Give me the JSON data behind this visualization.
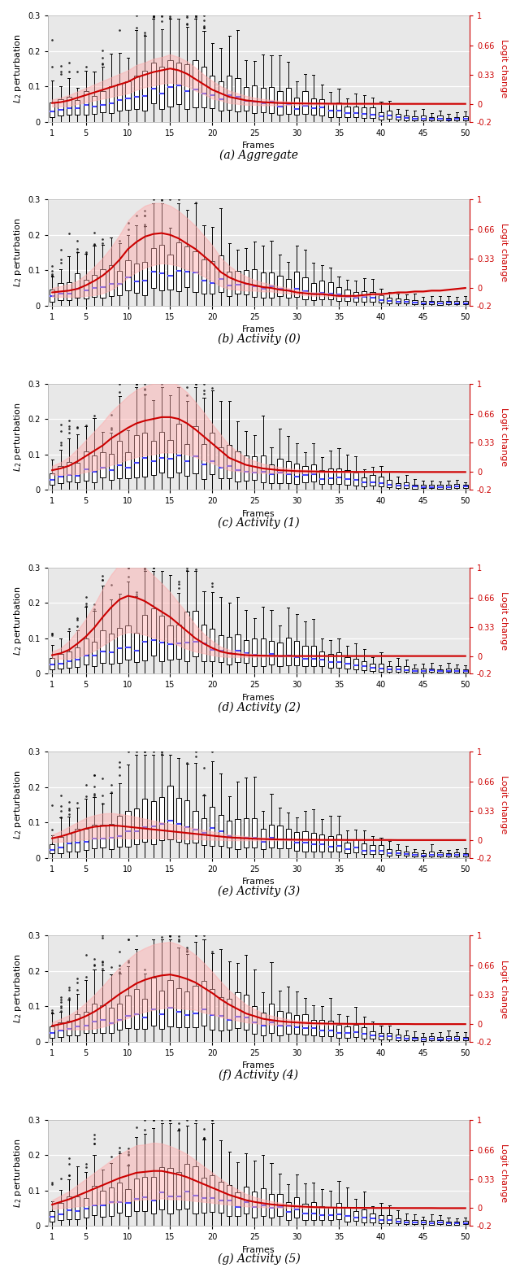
{
  "n_frames": 50,
  "subplot_titles": [
    "(a) Aggregate",
    "(b) Activity (0)",
    "(c) Activity (1)",
    "(d) Activity (2)",
    "(e) Activity (3)",
    "(f) Activity (4)",
    "(g) Activity (5)"
  ],
  "ylim_left": [
    0,
    0.3
  ],
  "ylim_right": [
    -0.2,
    1.0
  ],
  "yticks_left": [
    0,
    0.1,
    0.2,
    0.3
  ],
  "yticks_right_vals": [
    -0.2,
    0,
    0.33,
    0.66,
    1.0
  ],
  "yticks_right_labels": [
    "-0.2",
    "0",
    "0.33",
    "0.66",
    "1"
  ],
  "xticks": [
    1,
    5,
    10,
    15,
    20,
    25,
    30,
    35,
    40,
    45,
    50
  ],
  "xlabel": "Frames",
  "ylabel_left": "$L_2$ perturbation",
  "ylabel_right": "Logit change",
  "background_color": "#e8e8e8",
  "box_facecolor": "white",
  "box_edgecolor": "black",
  "median_color": "#4444ff",
  "whisker_color": "black",
  "flier_color": "black",
  "red_line_color": "#cc0000",
  "red_fill_color": "#ffaaaa",
  "red_fill_alpha": 0.45,
  "box_width": 0.6,
  "red_mean_agg": [
    0.01,
    0.02,
    0.04,
    0.07,
    0.1,
    0.13,
    0.16,
    0.19,
    0.22,
    0.25,
    0.3,
    0.33,
    0.36,
    0.38,
    0.4,
    0.38,
    0.34,
    0.28,
    0.22,
    0.16,
    0.12,
    0.08,
    0.06,
    0.04,
    0.03,
    0.02,
    0.015,
    0.01,
    0.008,
    0.006,
    0.005,
    0.004,
    0.004,
    0.003,
    0.003,
    0.002,
    0.002,
    0.002,
    0.002,
    0.002,
    0.001,
    0.001,
    0.001,
    0.001,
    0.001,
    0.001,
    0.001,
    0.001,
    0.001,
    0.001
  ],
  "red_std_agg": [
    0.04,
    0.05,
    0.06,
    0.07,
    0.08,
    0.09,
    0.1,
    0.11,
    0.12,
    0.13,
    0.14,
    0.14,
    0.15,
    0.15,
    0.16,
    0.15,
    0.14,
    0.13,
    0.11,
    0.1,
    0.08,
    0.07,
    0.06,
    0.05,
    0.04,
    0.035,
    0.03,
    0.025,
    0.02,
    0.018,
    0.015,
    0.013,
    0.012,
    0.01,
    0.01,
    0.008,
    0.008,
    0.007,
    0.007,
    0.006,
    0.006,
    0.005,
    0.005,
    0.005,
    0.004,
    0.004,
    0.004,
    0.003,
    0.003,
    0.003
  ],
  "red_mean_act0": [
    -0.05,
    -0.04,
    -0.03,
    -0.01,
    0.03,
    0.08,
    0.14,
    0.22,
    0.32,
    0.44,
    0.52,
    0.58,
    0.61,
    0.62,
    0.6,
    0.56,
    0.5,
    0.44,
    0.36,
    0.28,
    0.18,
    0.12,
    0.08,
    0.05,
    0.03,
    0.01,
    0.0,
    -0.02,
    -0.03,
    -0.05,
    -0.06,
    -0.07,
    -0.07,
    -0.08,
    -0.09,
    -0.09,
    -0.09,
    -0.08,
    -0.07,
    -0.07,
    -0.06,
    -0.05,
    -0.05,
    -0.04,
    -0.04,
    -0.03,
    -0.03,
    -0.02,
    -0.01,
    0.0
  ],
  "red_std_act0": [
    0.05,
    0.06,
    0.07,
    0.09,
    0.12,
    0.16,
    0.2,
    0.24,
    0.28,
    0.32,
    0.34,
    0.35,
    0.35,
    0.34,
    0.33,
    0.31,
    0.29,
    0.26,
    0.23,
    0.2,
    0.16,
    0.13,
    0.1,
    0.08,
    0.06,
    0.05,
    0.04,
    0.035,
    0.03,
    0.025,
    0.022,
    0.02,
    0.018,
    0.016,
    0.015,
    0.013,
    0.013,
    0.012,
    0.011,
    0.01,
    0.01,
    0.009,
    0.009,
    0.008,
    0.008,
    0.007,
    0.007,
    0.006,
    0.006,
    0.005
  ],
  "red_mean_act1": [
    0.02,
    0.04,
    0.07,
    0.12,
    0.18,
    0.24,
    0.3,
    0.38,
    0.44,
    0.5,
    0.55,
    0.58,
    0.6,
    0.62,
    0.62,
    0.6,
    0.55,
    0.48,
    0.4,
    0.32,
    0.24,
    0.16,
    0.12,
    0.08,
    0.06,
    0.04,
    0.03,
    0.02,
    0.015,
    0.01,
    0.008,
    0.006,
    0.004,
    0.003,
    0.002,
    0.002,
    0.001,
    0.001,
    0.001,
    0.001,
    0.001,
    0.001,
    0.0,
    0.0,
    0.0,
    0.0,
    0.0,
    0.0,
    0.0,
    0.0
  ],
  "red_std_act1": [
    0.05,
    0.07,
    0.1,
    0.14,
    0.18,
    0.22,
    0.26,
    0.3,
    0.33,
    0.36,
    0.38,
    0.39,
    0.4,
    0.4,
    0.4,
    0.38,
    0.35,
    0.31,
    0.27,
    0.22,
    0.18,
    0.14,
    0.11,
    0.08,
    0.065,
    0.052,
    0.042,
    0.034,
    0.027,
    0.022,
    0.018,
    0.015,
    0.012,
    0.01,
    0.009,
    0.008,
    0.007,
    0.006,
    0.006,
    0.005,
    0.005,
    0.004,
    0.004,
    0.004,
    0.003,
    0.003,
    0.003,
    0.002,
    0.002,
    0.002
  ],
  "red_mean_act2": [
    0.01,
    0.03,
    0.07,
    0.14,
    0.22,
    0.32,
    0.44,
    0.55,
    0.64,
    0.68,
    0.66,
    0.62,
    0.56,
    0.5,
    0.44,
    0.36,
    0.28,
    0.2,
    0.14,
    0.09,
    0.05,
    0.03,
    0.02,
    0.01,
    0.006,
    0.004,
    0.002,
    0.001,
    0.001,
    0.0,
    0.0,
    0.0,
    0.0,
    0.0,
    0.0,
    0.0,
    0.0,
    0.0,
    0.0,
    0.0,
    0.0,
    0.0,
    0.0,
    0.0,
    0.0,
    0.0,
    0.0,
    0.0,
    0.0,
    0.0
  ],
  "red_std_act2": [
    0.04,
    0.06,
    0.1,
    0.15,
    0.2,
    0.26,
    0.32,
    0.37,
    0.4,
    0.41,
    0.4,
    0.38,
    0.35,
    0.32,
    0.28,
    0.24,
    0.2,
    0.15,
    0.11,
    0.08,
    0.055,
    0.04,
    0.03,
    0.02,
    0.015,
    0.012,
    0.009,
    0.007,
    0.006,
    0.005,
    0.004,
    0.003,
    0.003,
    0.002,
    0.002,
    0.002,
    0.001,
    0.001,
    0.001,
    0.001,
    0.001,
    0.001,
    0.001,
    0.001,
    0.001,
    0.001,
    0.001,
    0.001,
    0.001,
    0.001
  ],
  "red_mean_act3": [
    0.02,
    0.04,
    0.07,
    0.1,
    0.13,
    0.15,
    0.16,
    0.165,
    0.16,
    0.15,
    0.14,
    0.13,
    0.12,
    0.11,
    0.1,
    0.09,
    0.08,
    0.07,
    0.06,
    0.05,
    0.04,
    0.03,
    0.025,
    0.02,
    0.015,
    0.012,
    0.009,
    0.007,
    0.005,
    0.004,
    0.003,
    0.003,
    0.002,
    0.002,
    0.002,
    0.001,
    0.001,
    0.001,
    0.001,
    0.001,
    0.001,
    0.0,
    0.0,
    0.0,
    0.0,
    0.0,
    0.0,
    0.0,
    0.0,
    0.0
  ],
  "red_std_act3": [
    0.04,
    0.06,
    0.08,
    0.1,
    0.12,
    0.13,
    0.14,
    0.14,
    0.135,
    0.13,
    0.12,
    0.11,
    0.1,
    0.09,
    0.085,
    0.075,
    0.068,
    0.06,
    0.053,
    0.046,
    0.038,
    0.032,
    0.027,
    0.022,
    0.018,
    0.015,
    0.012,
    0.01,
    0.008,
    0.007,
    0.006,
    0.005,
    0.004,
    0.004,
    0.003,
    0.003,
    0.002,
    0.002,
    0.002,
    0.002,
    0.001,
    0.001,
    0.001,
    0.001,
    0.001,
    0.001,
    0.001,
    0.001,
    0.001,
    0.001
  ],
  "red_mean_act4": [
    -0.02,
    0.0,
    0.02,
    0.05,
    0.09,
    0.14,
    0.2,
    0.27,
    0.34,
    0.4,
    0.46,
    0.5,
    0.53,
    0.55,
    0.56,
    0.54,
    0.51,
    0.47,
    0.41,
    0.35,
    0.28,
    0.22,
    0.17,
    0.12,
    0.09,
    0.06,
    0.045,
    0.033,
    0.024,
    0.018,
    0.013,
    0.009,
    0.007,
    0.005,
    0.004,
    0.003,
    0.002,
    0.002,
    0.001,
    0.001,
    0.001,
    0.001,
    0.001,
    0.0,
    0.0,
    0.0,
    0.0,
    0.0,
    0.0,
    0.0
  ],
  "red_std_act4": [
    0.04,
    0.06,
    0.08,
    0.11,
    0.15,
    0.19,
    0.23,
    0.27,
    0.3,
    0.33,
    0.35,
    0.36,
    0.37,
    0.37,
    0.37,
    0.36,
    0.34,
    0.31,
    0.28,
    0.24,
    0.2,
    0.16,
    0.13,
    0.1,
    0.08,
    0.06,
    0.05,
    0.04,
    0.03,
    0.024,
    0.019,
    0.015,
    0.012,
    0.01,
    0.008,
    0.007,
    0.005,
    0.005,
    0.004,
    0.004,
    0.003,
    0.003,
    0.002,
    0.002,
    0.002,
    0.002,
    0.001,
    0.001,
    0.001,
    0.001
  ],
  "red_mean_act5": [
    0.04,
    0.07,
    0.1,
    0.14,
    0.18,
    0.22,
    0.26,
    0.3,
    0.34,
    0.37,
    0.4,
    0.41,
    0.42,
    0.42,
    0.4,
    0.38,
    0.35,
    0.31,
    0.27,
    0.23,
    0.19,
    0.15,
    0.12,
    0.09,
    0.07,
    0.055,
    0.042,
    0.033,
    0.026,
    0.02,
    0.016,
    0.012,
    0.009,
    0.007,
    0.005,
    0.004,
    0.003,
    0.003,
    0.002,
    0.002,
    0.002,
    0.001,
    0.001,
    0.001,
    0.001,
    0.001,
    0.0,
    0.0,
    0.0,
    0.0
  ],
  "red_std_act5": [
    0.05,
    0.07,
    0.09,
    0.12,
    0.15,
    0.18,
    0.21,
    0.24,
    0.27,
    0.29,
    0.31,
    0.31,
    0.32,
    0.31,
    0.3,
    0.28,
    0.26,
    0.23,
    0.2,
    0.17,
    0.14,
    0.11,
    0.09,
    0.07,
    0.055,
    0.044,
    0.035,
    0.028,
    0.022,
    0.018,
    0.014,
    0.011,
    0.009,
    0.007,
    0.006,
    0.005,
    0.004,
    0.003,
    0.003,
    0.002,
    0.002,
    0.002,
    0.002,
    0.001,
    0.001,
    0.001,
    0.001,
    0.001,
    0.001,
    0.001
  ],
  "box_medians_agg": [
    0.025,
    0.028,
    0.032,
    0.038,
    0.045,
    0.052,
    0.06,
    0.068,
    0.075,
    0.082,
    0.088,
    0.092,
    0.095,
    0.097,
    0.098,
    0.095,
    0.09,
    0.085,
    0.078,
    0.07,
    0.062,
    0.055,
    0.048,
    0.042,
    0.037,
    0.032,
    0.028,
    0.025,
    0.022,
    0.02,
    0.018,
    0.016,
    0.015,
    0.014,
    0.013,
    0.012,
    0.011,
    0.01,
    0.009,
    0.009,
    0.008,
    0.008,
    0.007,
    0.007,
    0.006,
    0.006,
    0.005,
    0.005,
    0.004,
    0.004
  ],
  "box_q1_agg": [
    0.01,
    0.012,
    0.015,
    0.018,
    0.022,
    0.026,
    0.03,
    0.035,
    0.04,
    0.045,
    0.05,
    0.055,
    0.058,
    0.06,
    0.062,
    0.06,
    0.055,
    0.05,
    0.045,
    0.04,
    0.035,
    0.03,
    0.025,
    0.022,
    0.018,
    0.016,
    0.014,
    0.012,
    0.01,
    0.009,
    0.008,
    0.007,
    0.006,
    0.006,
    0.005,
    0.005,
    0.004,
    0.004,
    0.004,
    0.003,
    0.003,
    0.003,
    0.003,
    0.002,
    0.002,
    0.002,
    0.002,
    0.002,
    0.001,
    0.001
  ],
  "box_q3_agg": [
    0.045,
    0.05,
    0.058,
    0.068,
    0.08,
    0.09,
    0.1,
    0.11,
    0.12,
    0.13,
    0.138,
    0.142,
    0.145,
    0.148,
    0.15,
    0.145,
    0.138,
    0.13,
    0.12,
    0.108,
    0.096,
    0.085,
    0.075,
    0.065,
    0.057,
    0.05,
    0.044,
    0.038,
    0.033,
    0.029,
    0.026,
    0.023,
    0.021,
    0.019,
    0.017,
    0.016,
    0.014,
    0.013,
    0.012,
    0.011,
    0.01,
    0.01,
    0.009,
    0.009,
    0.008,
    0.007,
    0.007,
    0.006,
    0.005,
    0.005
  ]
}
